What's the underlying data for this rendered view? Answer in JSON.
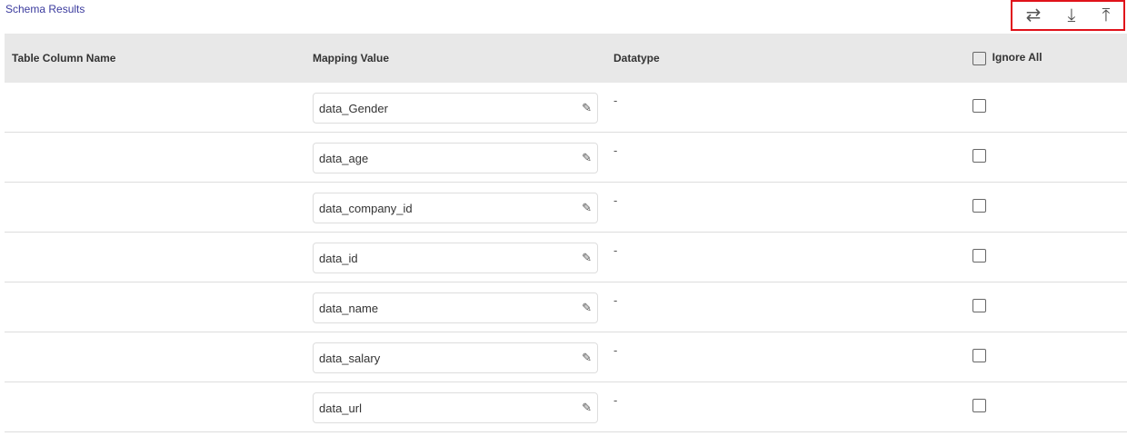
{
  "title": "Schema Results",
  "toolbar": {
    "icons": [
      "swap-icon",
      "download-icon",
      "upload-icon"
    ]
  },
  "headers": {
    "column": "Table Column Name",
    "mapping": "Mapping Value",
    "datatype": "Datatype",
    "ignore_all": "Ignore All"
  },
  "rows": [
    {
      "column": "",
      "mapping": "data_Gender",
      "datatype": "-",
      "ignored": false
    },
    {
      "column": "",
      "mapping": "data_age",
      "datatype": "-",
      "ignored": false
    },
    {
      "column": "",
      "mapping": "data_company_id",
      "datatype": "-",
      "ignored": false
    },
    {
      "column": "",
      "mapping": "data_id",
      "datatype": "-",
      "ignored": false
    },
    {
      "column": "",
      "mapping": "data_name",
      "datatype": "-",
      "ignored": false
    },
    {
      "column": "",
      "mapping": "data_salary",
      "datatype": "-",
      "ignored": false
    },
    {
      "column": "",
      "mapping": "data_url",
      "datatype": "-",
      "ignored": false
    }
  ]
}
